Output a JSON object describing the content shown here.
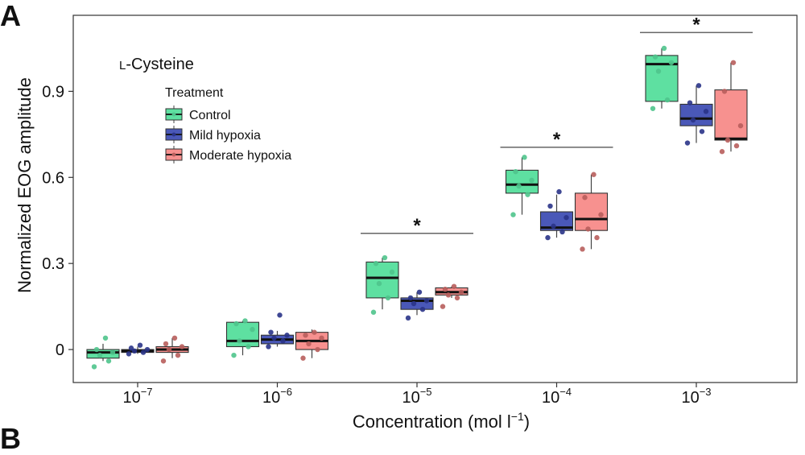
{
  "panel_label": "A",
  "next_panel_label": "B",
  "chart_data": {
    "type": "boxplot",
    "title": "L-Cysteine",
    "title_prefix": "L",
    "title_rest": "-Cysteine",
    "xlabel": "Concentration (mol l⁻¹)",
    "xlabel_text": "Concentration (mol l",
    "xlabel_exp": "−1",
    "xlabel_close": ")",
    "ylabel": "Normalized EOG amplitude",
    "ylim": [
      -0.115,
      1.165
    ],
    "yticks": [
      0,
      0.3,
      0.6,
      0.9
    ],
    "ytick_labels": [
      "0",
      "0.3",
      "0.6",
      "0.9"
    ],
    "categories": [
      "10⁻⁷",
      "10⁻⁶",
      "10⁻⁵",
      "10⁻⁴",
      "10⁻³"
    ],
    "category_base": "10",
    "category_exponents": [
      "−7",
      "−6",
      "−5",
      "−4",
      "−3"
    ],
    "legend": {
      "title": "Treatment",
      "position": "top-left"
    },
    "series": [
      {
        "name": "Control",
        "fill": "#5ee0a1",
        "point_color": "#4fc48c",
        "boxes": [
          {
            "q1": -0.03,
            "median": -0.01,
            "q3": 0.0,
            "low": -0.04,
            "high": 0.02
          },
          {
            "q1": 0.01,
            "median": 0.03,
            "q3": 0.095,
            "low": -0.02,
            "high": 0.1
          },
          {
            "q1": 0.18,
            "median": 0.25,
            "q3": 0.305,
            "low": 0.14,
            "high": 0.32
          },
          {
            "q1": 0.545,
            "median": 0.575,
            "q3": 0.625,
            "low": 0.47,
            "high": 0.67
          },
          {
            "q1": 0.865,
            "median": 0.995,
            "q3": 1.025,
            "low": 0.84,
            "high": 1.05
          }
        ],
        "points": [
          [
            -0.06,
            -0.04,
            -0.02,
            -0.01,
            0.0,
            0.04
          ],
          [
            -0.02,
            0.01,
            0.03,
            0.07,
            0.09,
            0.1
          ],
          [
            0.13,
            0.18,
            0.23,
            0.27,
            0.3,
            0.32
          ],
          [
            0.47,
            0.54,
            0.57,
            0.59,
            0.62,
            0.67
          ],
          [
            0.84,
            0.87,
            0.97,
            1.0,
            1.02,
            1.05
          ]
        ]
      },
      {
        "name": "Mild hypoxia",
        "fill": "#4a58b8",
        "point_color": "#2a3488",
        "boxes": [
          {
            "q1": -0.01,
            "median": -0.005,
            "q3": 0.0,
            "low": -0.015,
            "high": 0.01
          },
          {
            "q1": 0.02,
            "median": 0.035,
            "q3": 0.05,
            "low": 0.01,
            "high": 0.065
          },
          {
            "q1": 0.14,
            "median": 0.17,
            "q3": 0.18,
            "low": 0.12,
            "high": 0.2
          },
          {
            "q1": 0.415,
            "median": 0.425,
            "q3": 0.48,
            "low": 0.39,
            "high": 0.54
          },
          {
            "q1": 0.78,
            "median": 0.805,
            "q3": 0.855,
            "low": 0.72,
            "high": 0.92
          }
        ],
        "points": [
          [
            -0.015,
            -0.01,
            -0.005,
            0.0,
            0.005,
            0.015
          ],
          [
            0.01,
            0.03,
            0.04,
            0.05,
            0.06,
            0.12
          ],
          [
            0.11,
            0.14,
            0.16,
            0.17,
            0.18,
            0.2
          ],
          [
            0.39,
            0.41,
            0.43,
            0.46,
            0.5,
            0.55
          ],
          [
            0.72,
            0.76,
            0.8,
            0.83,
            0.86,
            0.92
          ]
        ]
      },
      {
        "name": "Moderate hypoxia",
        "fill": "#f7918f",
        "point_color": "#b85e5c",
        "boxes": [
          {
            "q1": -0.01,
            "median": 0.0,
            "q3": 0.01,
            "low": -0.03,
            "high": 0.04
          },
          {
            "q1": 0.0,
            "median": 0.03,
            "q3": 0.06,
            "low": -0.03,
            "high": 0.07
          },
          {
            "q1": 0.19,
            "median": 0.2,
            "q3": 0.215,
            "low": 0.18,
            "high": 0.22
          },
          {
            "q1": 0.415,
            "median": 0.455,
            "q3": 0.545,
            "low": 0.35,
            "high": 0.61
          },
          {
            "q1": 0.73,
            "median": 0.735,
            "q3": 0.905,
            "low": 0.69,
            "high": 1.0
          }
        ],
        "points": [
          [
            -0.04,
            -0.02,
            0.0,
            0.01,
            0.02,
            0.04
          ],
          [
            -0.03,
            0.0,
            0.02,
            0.04,
            0.05,
            0.06
          ],
          [
            0.15,
            0.18,
            0.19,
            0.2,
            0.21,
            0.22
          ],
          [
            0.35,
            0.39,
            0.42,
            0.47,
            0.53,
            0.61
          ],
          [
            0.69,
            0.71,
            0.73,
            0.78,
            0.9,
            1.0
          ]
        ]
      }
    ],
    "significance": [
      {
        "category_index": 2,
        "y": 0.405,
        "label": "*"
      },
      {
        "category_index": 3,
        "y": 0.705,
        "label": "*"
      },
      {
        "category_index": 4,
        "y": 1.105,
        "label": "*"
      }
    ]
  }
}
